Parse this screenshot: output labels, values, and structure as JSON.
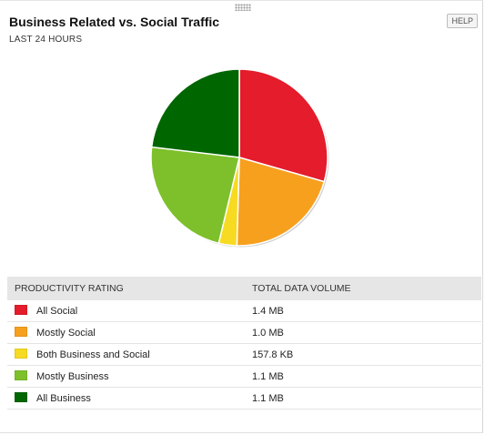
{
  "widget": {
    "title": "Business Related vs. Social Traffic",
    "subtitle": "LAST 24 HOURS",
    "help_label": "HELP"
  },
  "table": {
    "col_rating": "PRODUCTIVITY RATING",
    "col_volume": "TOTAL DATA VOLUME",
    "rows": [
      {
        "label": "All Social",
        "volume": "1.4 MB",
        "color": "#e41c2c"
      },
      {
        "label": "Mostly Social",
        "volume": "1.0 MB",
        "color": "#f7a01e"
      },
      {
        "label": "Both Business and Social",
        "volume": "157.8 KB",
        "color": "#f7da22"
      },
      {
        "label": "Mostly Business",
        "volume": "1.1 MB",
        "color": "#7dc02b"
      },
      {
        "label": "All Business",
        "volume": "1.1 MB",
        "color": "#006600"
      }
    ]
  },
  "chart_data": {
    "type": "pie",
    "categories": [
      "All Social",
      "Mostly Social",
      "Both Business and Social",
      "Mostly Business",
      "All Business"
    ],
    "values": [
      1.4,
      1.0,
      0.158,
      1.1,
      1.1
    ],
    "colors": [
      "#e41c2c",
      "#f7a01e",
      "#f7da22",
      "#7dc02b",
      "#006600"
    ],
    "unit": "MB"
  }
}
